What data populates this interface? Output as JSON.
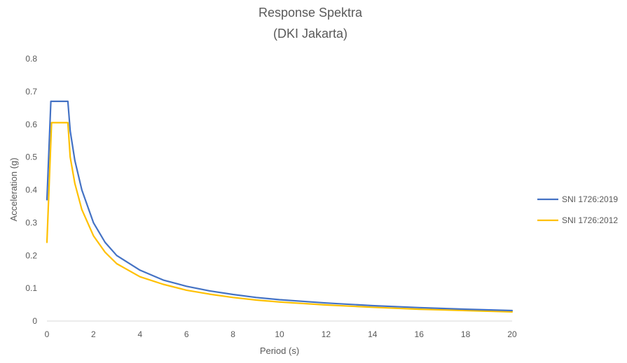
{
  "chart_data": {
    "type": "line",
    "title": "Response Spektra",
    "subtitle": "(DKI Jakarta)",
    "xlabel": "Period (s)",
    "ylabel": "Acceleration (g)",
    "xlim": [
      0,
      20
    ],
    "ylim": [
      0,
      0.8
    ],
    "x_ticks": [
      0,
      2,
      4,
      6,
      8,
      10,
      12,
      14,
      16,
      18,
      20
    ],
    "y_ticks": [
      0,
      0.1,
      0.2,
      0.3,
      0.4,
      0.5,
      0.6,
      0.7,
      0.8
    ],
    "grid": false,
    "legend_position": "right",
    "series": [
      {
        "name": "SNI 1726:2019",
        "color": "#4472C4",
        "x": [
          0,
          0.17,
          0.9,
          1.0,
          1.2,
          1.5,
          2,
          2.5,
          3,
          4,
          5,
          6,
          7,
          8,
          9,
          10,
          12,
          14,
          16,
          18,
          20
        ],
        "y": [
          0.37,
          0.67,
          0.67,
          0.58,
          0.49,
          0.4,
          0.3,
          0.24,
          0.2,
          0.155,
          0.125,
          0.106,
          0.092,
          0.081,
          0.072,
          0.065,
          0.055,
          0.047,
          0.041,
          0.036,
          0.032
        ]
      },
      {
        "name": "SNI 1726:2012",
        "color": "#FFC000",
        "x": [
          0,
          0.2,
          0.9,
          1.0,
          1.2,
          1.5,
          2,
          2.5,
          3,
          4,
          5,
          6,
          7,
          8,
          9,
          10,
          12,
          14,
          16,
          18,
          20
        ],
        "y": [
          0.24,
          0.605,
          0.605,
          0.5,
          0.42,
          0.34,
          0.26,
          0.21,
          0.175,
          0.135,
          0.112,
          0.094,
          0.082,
          0.072,
          0.064,
          0.058,
          0.049,
          0.042,
          0.036,
          0.032,
          0.028
        ]
      }
    ]
  }
}
